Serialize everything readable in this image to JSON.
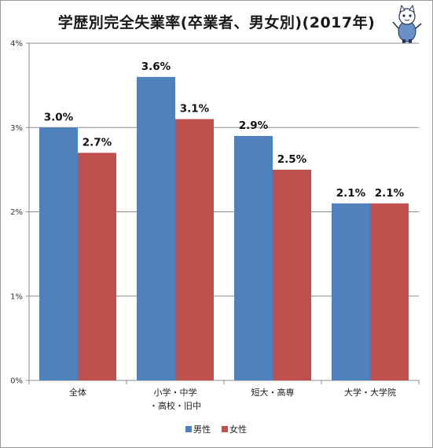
{
  "chart_data": {
    "type": "bar",
    "title": "学歴別完全失業率(卒業者、男女別)(2017年)",
    "categories": [
      "全体",
      "小学・中学・高校・旧中",
      "短大・高専",
      "大学・大学院"
    ],
    "category_lines": [
      [
        "全体"
      ],
      [
        "小学・中学",
        "・高校・旧中"
      ],
      [
        "短大・高専"
      ],
      [
        "大学・大学院"
      ]
    ],
    "series": [
      {
        "name": "男性",
        "color": "#4f81bd",
        "values": [
          3.0,
          3.6,
          2.9,
          2.1
        ]
      },
      {
        "name": "女性",
        "color": "#c0504d",
        "values": [
          2.7,
          3.1,
          2.5,
          2.1
        ]
      }
    ],
    "value_labels": [
      [
        "3.0%",
        "3.6%",
        "2.9%",
        "2.1%"
      ],
      [
        "2.7%",
        "3.1%",
        "2.5%",
        "2.1%"
      ]
    ],
    "ylim": [
      0,
      4
    ],
    "yticks": [
      0,
      1,
      2,
      3,
      4
    ],
    "ytick_labels": [
      "0%",
      "1%",
      "2%",
      "3%",
      "4%"
    ],
    "grid": true,
    "legend": "bottom-center"
  }
}
